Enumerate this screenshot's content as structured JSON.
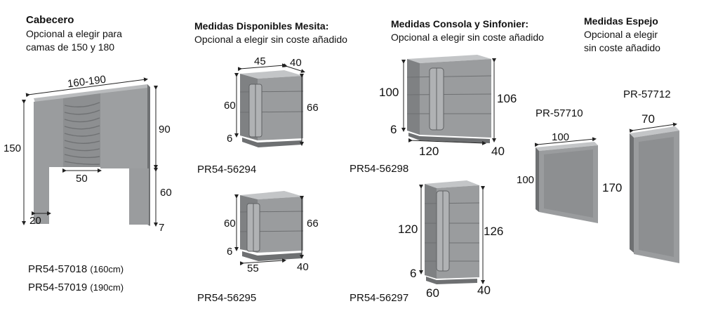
{
  "colors": {
    "panel": "#9a9c9e",
    "panel_dark": "#7d7f81",
    "panel_light": "#b7b9bb",
    "base": "#6e7072",
    "line": "#222222"
  },
  "cabecero": {
    "title": "Cabecero",
    "subtitle_1": "Opcional a elegir para",
    "subtitle_2": "camas de 150 y 180",
    "dims": {
      "width": "160-190",
      "height": "150",
      "upper": "90",
      "lower": "60",
      "inner": "50",
      "leg": "20",
      "depth": "7"
    },
    "codes": [
      {
        "code": "PR54-57018",
        "size": "(160cm)"
      },
      {
        "code": "PR54-57019",
        "size": "(190cm)"
      }
    ]
  },
  "mesita": {
    "title": "Medidas Disponibles Mesita:",
    "subtitle": "Opcional a elegir sin coste añadido",
    "top": {
      "w": "45",
      "d": "40",
      "h_inner": "60",
      "h_total": "66",
      "base": "6",
      "code": "PR54-56294"
    },
    "bottom": {
      "w": "55",
      "d": "40",
      "h_inner": "60",
      "h_total": "66",
      "base": "6",
      "code": "PR54-56295"
    }
  },
  "consola": {
    "title": "Medidas Consola y Sinfonier:",
    "subtitle": "Opcional a elegir sin coste añadido",
    "top": {
      "h_inner": "100",
      "h_total": "106",
      "base": "6",
      "w": "120",
      "d": "40",
      "code": "PR54-56298"
    },
    "bottom": {
      "h_inner": "120",
      "h_total": "126",
      "base": "6",
      "w": "60",
      "d": "40",
      "code": "PR54-56297"
    }
  },
  "espejo": {
    "title": "Medidas Espejo",
    "subtitle_1": "Opcional a elegir",
    "subtitle_2": "sin coste añadido",
    "small": {
      "code": "PR-57710",
      "w": "100",
      "h": "100"
    },
    "large": {
      "code": "PR-57712",
      "w": "70",
      "h": "170"
    }
  }
}
